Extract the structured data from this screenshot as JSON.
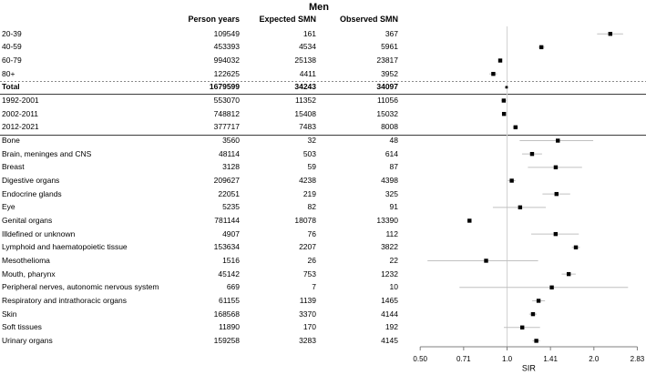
{
  "figure": {
    "title": "Men"
  },
  "chart_data": {
    "type": "forest",
    "title": "Men",
    "xlabel": "SIR",
    "x_scale": "log2",
    "x_range": [
      0.5,
      2.83
    ],
    "x_ticks": [
      {
        "label": "0.50",
        "value": 0.5
      },
      {
        "label": "0.71",
        "value": 0.7071
      },
      {
        "label": "1.0",
        "value": 1.0
      },
      {
        "label": "1.41",
        "value": 1.4142
      },
      {
        "label": "2.0",
        "value": 2.0
      },
      {
        "label": "2.83",
        "value": 2.8284
      }
    ],
    "reference_line": 1.0,
    "legend": "none",
    "grid": "off",
    "columns": [
      "Person years",
      "Expected SMN",
      "Observed SMN"
    ],
    "colors": {
      "marker": "#000000",
      "ci_line": "#c0c0c0",
      "reference_line": "#d2d2d2",
      "axis": "#7f7f7f",
      "text": "#000000"
    },
    "rows": [
      {
        "label": "20-39",
        "person_years": "109549",
        "expected_smn": "161",
        "observed_smn": "367",
        "sir": 2.28,
        "ci_low": 2.052,
        "ci_high": 2.525,
        "group": "age",
        "bold": false
      },
      {
        "label": "40-59",
        "person_years": "453393",
        "expected_smn": "4534",
        "observed_smn": "5961",
        "sir": 1.315,
        "ci_low": 1.282,
        "ci_high": 1.349,
        "group": "age",
        "bold": false
      },
      {
        "label": "60-79",
        "person_years": "994032",
        "expected_smn": "25138",
        "observed_smn": "23817",
        "sir": 0.947,
        "ci_low": 0.936,
        "ci_high": 0.96,
        "group": "age",
        "bold": false
      },
      {
        "label": "80+",
        "person_years": "122625",
        "expected_smn": "4411",
        "observed_smn": "3952",
        "sir": 0.896,
        "ci_low": 0.868,
        "ci_high": 0.924,
        "group": "age",
        "bold": false
      },
      {
        "label": "Total",
        "person_years": "1679599",
        "expected_smn": "34243",
        "observed_smn": "34097",
        "sir": 0.996,
        "ci_low": 0.985,
        "ci_high": 1.006,
        "group": "total",
        "bold": true
      },
      {
        "label": "1992-2001",
        "person_years": "553070",
        "expected_smn": "11352",
        "observed_smn": "11056",
        "sir": 0.974,
        "ci_low": 0.956,
        "ci_high": 0.992,
        "group": "period",
        "bold": false
      },
      {
        "label": "2002-2011",
        "person_years": "748812",
        "expected_smn": "15408",
        "observed_smn": "15032",
        "sir": 0.976,
        "ci_low": 0.96,
        "ci_high": 0.991,
        "group": "period",
        "bold": false
      },
      {
        "label": "2012-2021",
        "person_years": "377717",
        "expected_smn": "7483",
        "observed_smn": "8008",
        "sir": 1.07,
        "ci_low": 1.047,
        "ci_high": 1.094,
        "group": "period",
        "bold": false
      },
      {
        "label": "Bone",
        "person_years": "3560",
        "expected_smn": "32",
        "observed_smn": "48",
        "sir": 1.5,
        "ci_low": 1.106,
        "ci_high": 1.989,
        "group": "site",
        "bold": false
      },
      {
        "label": "Brain, meninges and CNS",
        "person_years": "48114",
        "expected_smn": "503",
        "observed_smn": "614",
        "sir": 1.221,
        "ci_low": 1.127,
        "ci_high": 1.322,
        "group": "site",
        "bold": false
      },
      {
        "label": "Breast",
        "person_years": "3128",
        "expected_smn": "59",
        "observed_smn": "87",
        "sir": 1.475,
        "ci_low": 1.181,
        "ci_high": 1.819,
        "group": "site",
        "bold": false
      },
      {
        "label": "Digestive organs",
        "person_years": "209627",
        "expected_smn": "4238",
        "observed_smn": "4398",
        "sir": 1.038,
        "ci_low": 1.007,
        "ci_high": 1.069,
        "group": "site",
        "bold": false
      },
      {
        "label": "Endocrine glands",
        "person_years": "22051",
        "expected_smn": "219",
        "observed_smn": "325",
        "sir": 1.484,
        "ci_low": 1.327,
        "ci_high": 1.655,
        "group": "site",
        "bold": false
      },
      {
        "label": "Eye",
        "person_years": "5235",
        "expected_smn": "82",
        "observed_smn": "91",
        "sir": 1.11,
        "ci_low": 0.893,
        "ci_high": 1.363,
        "group": "site",
        "bold": false
      },
      {
        "label": "Genital organs",
        "person_years": "781144",
        "expected_smn": "18078",
        "observed_smn": "13390",
        "sir": 0.741,
        "ci_low": 0.728,
        "ci_high": 0.753,
        "group": "site",
        "bold": false
      },
      {
        "label": "Illdefined or unknown",
        "person_years": "4907",
        "expected_smn": "76",
        "observed_smn": "112",
        "sir": 1.474,
        "ci_low": 1.213,
        "ci_high": 1.773,
        "group": "site",
        "bold": false
      },
      {
        "label": "Lymphoid and haematopoietic tissue",
        "person_years": "153634",
        "expected_smn": "2207",
        "observed_smn": "3822",
        "sir": 1.732,
        "ci_low": 1.678,
        "ci_high": 1.788,
        "group": "site",
        "bold": false
      },
      {
        "label": "Mesothelioma",
        "person_years": "1516",
        "expected_smn": "26",
        "observed_smn": "22",
        "sir": 0.846,
        "ci_low": 0.53,
        "ci_high": 1.281,
        "group": "site",
        "bold": false
      },
      {
        "label": "Mouth, pharynx",
        "person_years": "45142",
        "expected_smn": "753",
        "observed_smn": "1232",
        "sir": 1.636,
        "ci_low": 1.547,
        "ci_high": 1.73,
        "group": "site",
        "bold": false
      },
      {
        "label": "Peripheral nerves, autonomic nervous system",
        "person_years": "669",
        "expected_smn": "7",
        "observed_smn": "10",
        "sir": 1.429,
        "ci_low": 0.684,
        "ci_high": 2.627,
        "group": "site",
        "bold": false
      },
      {
        "label": "Respiratory and intrathoracic organs",
        "person_years": "61155",
        "expected_smn": "1139",
        "observed_smn": "1465",
        "sir": 1.286,
        "ci_low": 1.222,
        "ci_high": 1.354,
        "group": "site",
        "bold": false
      },
      {
        "label": "Skin",
        "person_years": "168568",
        "expected_smn": "3370",
        "observed_smn": "4144",
        "sir": 1.23,
        "ci_low": 1.193,
        "ci_high": 1.268,
        "group": "site",
        "bold": false
      },
      {
        "label": "Soft tissues",
        "person_years": "11890",
        "expected_smn": "170",
        "observed_smn": "192",
        "sir": 1.129,
        "ci_low": 0.975,
        "ci_high": 1.301,
        "group": "site",
        "bold": false
      },
      {
        "label": "Urinary organs",
        "person_years": "159258",
        "expected_smn": "3283",
        "observed_smn": "4145",
        "sir": 1.263,
        "ci_low": 1.225,
        "ci_high": 1.302,
        "group": "site",
        "bold": false
      }
    ]
  }
}
